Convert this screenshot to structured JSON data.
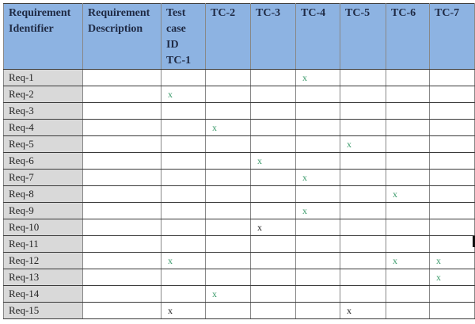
{
  "table": {
    "headers": [
      "Requirement Identifier",
      "Requirement Description",
      "Test case ID TC-1",
      "TC-2",
      "TC-3",
      "TC-4",
      "TC-5",
      "TC-6",
      "TC-7"
    ],
    "mark_colors": {
      "green": "#3a9a6a",
      "black": "#222222"
    },
    "rows": [
      {
        "id": "Req-1",
        "description": "",
        "marks": [
          "",
          "",
          "",
          "x",
          "",
          "",
          ""
        ],
        "colors": [
          "",
          "",
          "",
          "green",
          "",
          "",
          ""
        ]
      },
      {
        "id": "Req-2",
        "description": "",
        "marks": [
          "x",
          "",
          "",
          "",
          "",
          "",
          ""
        ],
        "colors": [
          "green",
          "",
          "",
          "",
          "",
          "",
          ""
        ]
      },
      {
        "id": "Req-3",
        "description": "",
        "marks": [
          "",
          "",
          "",
          "",
          "",
          "",
          ""
        ],
        "colors": [
          "",
          "",
          "",
          "",
          "",
          "",
          ""
        ]
      },
      {
        "id": "Req-4",
        "description": "",
        "marks": [
          "",
          "x",
          "",
          "",
          "",
          "",
          ""
        ],
        "colors": [
          "",
          "green",
          "",
          "",
          "",
          "",
          ""
        ]
      },
      {
        "id": "Req-5",
        "description": "",
        "marks": [
          "",
          "",
          "",
          "",
          "x",
          "",
          ""
        ],
        "colors": [
          "",
          "",
          "",
          "",
          "green",
          "",
          ""
        ]
      },
      {
        "id": "Req-6",
        "description": "",
        "marks": [
          "",
          "",
          "x",
          "",
          "",
          "",
          ""
        ],
        "colors": [
          "",
          "",
          "green",
          "",
          "",
          "",
          ""
        ]
      },
      {
        "id": "Req-7",
        "description": "",
        "marks": [
          "",
          "",
          "",
          "x",
          "",
          "",
          ""
        ],
        "colors": [
          "",
          "",
          "",
          "green",
          "",
          "",
          ""
        ]
      },
      {
        "id": "Req-8",
        "description": "",
        "marks": [
          "",
          "",
          "",
          "",
          "",
          "x",
          ""
        ],
        "colors": [
          "",
          "",
          "",
          "",
          "",
          "green",
          ""
        ]
      },
      {
        "id": "Req-9",
        "description": "",
        "marks": [
          "",
          "",
          "",
          "x",
          "",
          "",
          ""
        ],
        "colors": [
          "",
          "",
          "",
          "green",
          "",
          "",
          ""
        ]
      },
      {
        "id": "Req-10",
        "description": "",
        "marks": [
          "",
          "",
          "x",
          "",
          "",
          "",
          ""
        ],
        "colors": [
          "",
          "",
          "black",
          "",
          "",
          "",
          ""
        ]
      },
      {
        "id": "Req-11",
        "description": "",
        "marks": [
          "",
          "",
          "",
          "",
          "",
          "",
          ""
        ],
        "colors": [
          "",
          "",
          "",
          "",
          "",
          "",
          ""
        ]
      },
      {
        "id": "Req-12",
        "description": "",
        "marks": [
          "x",
          "",
          "",
          "",
          "",
          "x",
          "x"
        ],
        "colors": [
          "green",
          "",
          "",
          "",
          "",
          "green",
          "green"
        ]
      },
      {
        "id": "Req-13",
        "description": "",
        "marks": [
          "",
          "",
          "",
          "",
          "",
          "",
          "x"
        ],
        "colors": [
          "",
          "",
          "",
          "",
          "",
          "",
          "green"
        ]
      },
      {
        "id": "Req-14",
        "description": "",
        "marks": [
          "",
          "x",
          "",
          "",
          "",
          "",
          ""
        ],
        "colors": [
          "",
          "green",
          "",
          "",
          "",
          "",
          ""
        ]
      },
      {
        "id": "Req-15",
        "description": "",
        "marks": [
          "x",
          "",
          "",
          "",
          "x",
          "",
          ""
        ],
        "colors": [
          "black",
          "",
          "",
          "",
          "black",
          "",
          ""
        ]
      }
    ]
  }
}
